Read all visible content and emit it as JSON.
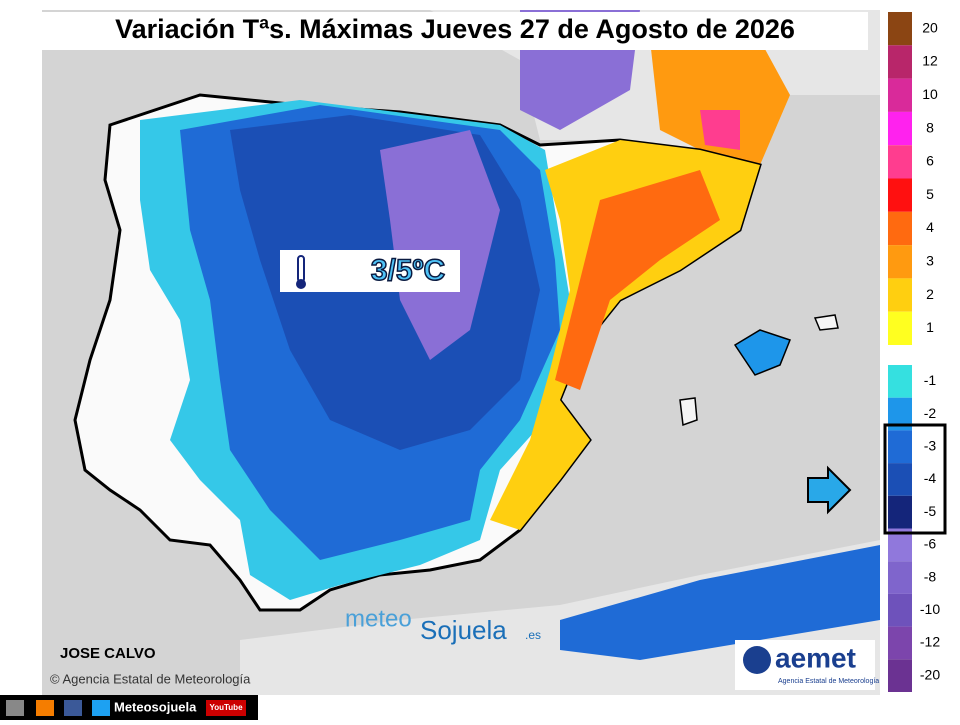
{
  "title": "Variación Tªs. Máximas Jueves 27 de Agosto de 2026",
  "map_label": "3/5ºC",
  "legend": {
    "warm": [
      {
        "label": 20,
        "color": "#8b4513"
      },
      {
        "label": 12,
        "color": "#b8266a"
      },
      {
        "label": 10,
        "color": "#d92a9a"
      },
      {
        "label": 8,
        "color": "#ff22ee"
      },
      {
        "label": 6,
        "color": "#ff3d8f"
      },
      {
        "label": 5,
        "color": "#ff1010"
      },
      {
        "label": 4,
        "color": "#ff6a10"
      },
      {
        "label": 3,
        "color": "#ff9a10"
      },
      {
        "label": 2,
        "color": "#ffcf10"
      },
      {
        "label": 1,
        "color": "#ffff20"
      }
    ],
    "cool": [
      {
        "label": -1,
        "color": "#35e0e0"
      },
      {
        "label": -2,
        "color": "#1e96ea"
      },
      {
        "label": -3,
        "color": "#1f6bd6"
      },
      {
        "label": -4,
        "color": "#1b4fb5"
      },
      {
        "label": -5,
        "color": "#14257a"
      },
      {
        "label": -6,
        "color": "#9078dc"
      },
      {
        "label": -8,
        "color": "#7f65cc"
      },
      {
        "label": -10,
        "color": "#6e52bb"
      },
      {
        "label": -12,
        "color": "#7c45ac"
      },
      {
        "label": -20,
        "color": "#6b3292"
      }
    ]
  },
  "author": "JOSE CALVO",
  "copyright": "© Agencia Estatal de Meteorología",
  "watermark": {
    "meteo": "meteo",
    "sojuela": "Sojuela",
    "domain": ".es"
  },
  "logo": {
    "name": "aemet",
    "subtitle": "Agencia Estatal de Meteorología"
  },
  "footer": {
    "site": "Meteosojuela",
    "youtube": "YouTube"
  }
}
